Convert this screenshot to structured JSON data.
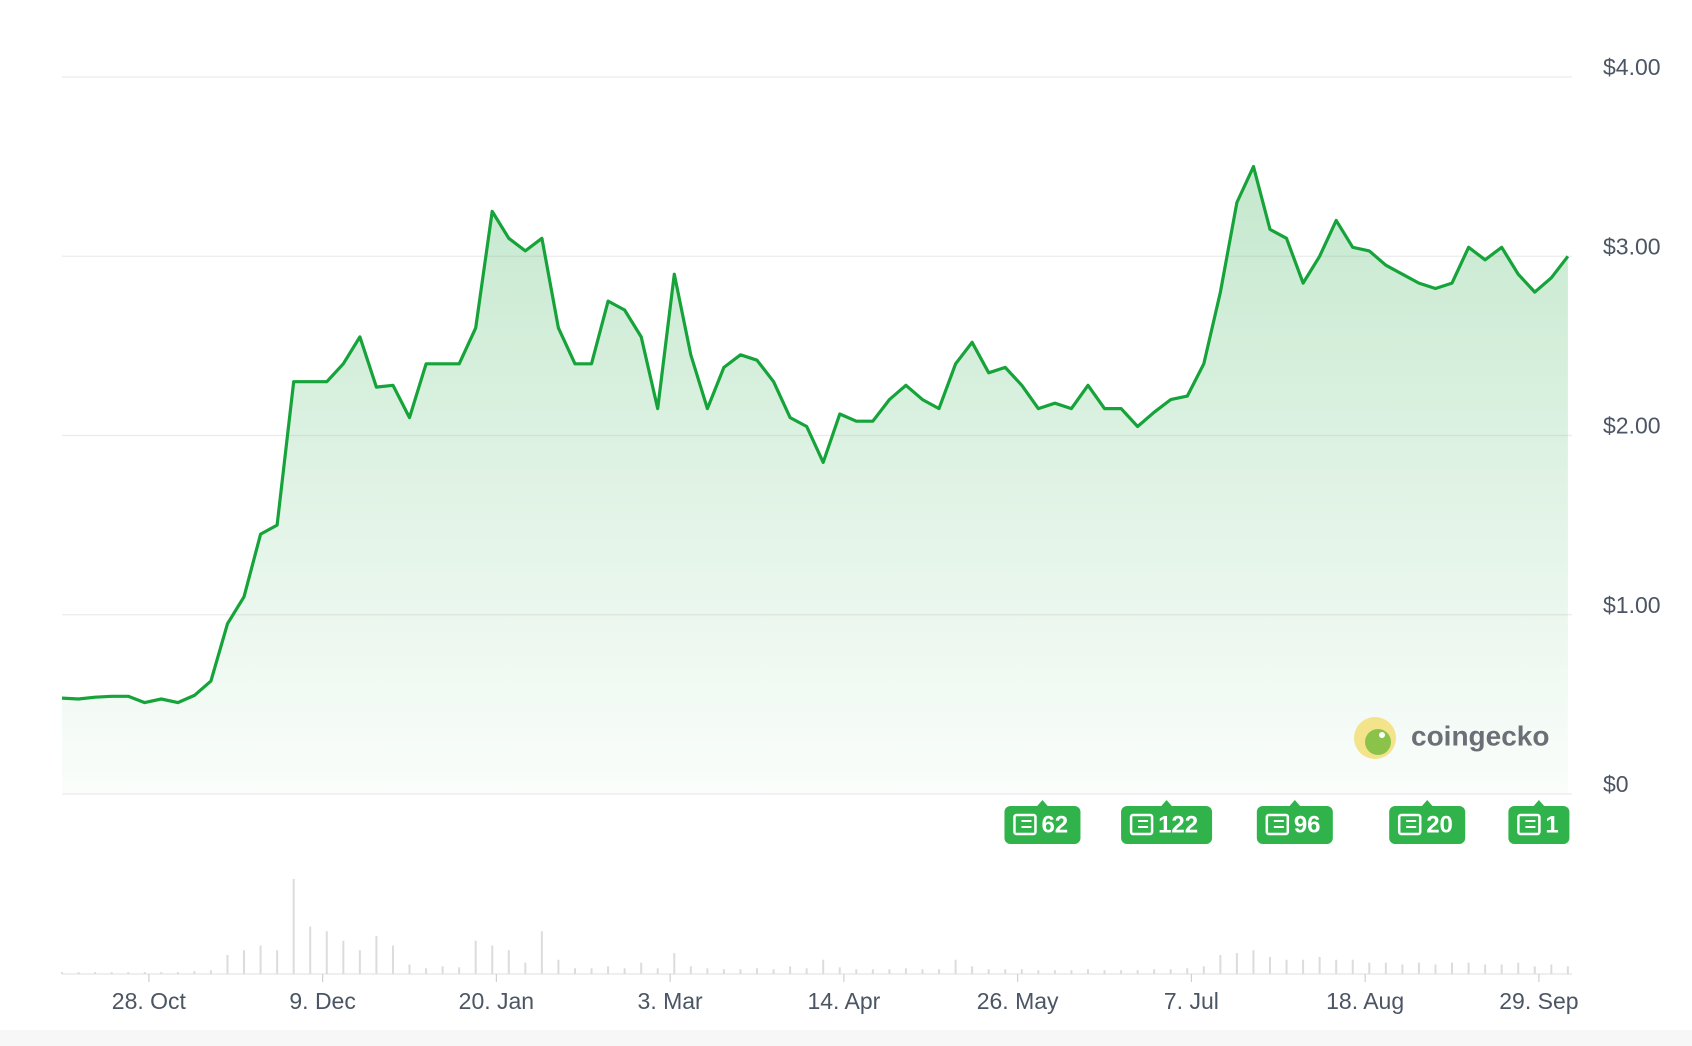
{
  "chart_data": {
    "type": "area",
    "values": [
      0.535,
      0.53,
      0.54,
      0.545,
      0.545,
      0.51,
      0.53,
      0.51,
      0.55,
      0.63,
      0.95,
      1.1,
      1.45,
      1.5,
      2.3,
      2.3,
      2.3,
      2.4,
      2.55,
      2.27,
      2.28,
      2.1,
      2.4,
      2.4,
      2.4,
      2.6,
      3.25,
      3.1,
      3.03,
      3.1,
      2.6,
      2.4,
      2.4,
      2.75,
      2.7,
      2.55,
      2.15,
      2.9,
      2.45,
      2.15,
      2.38,
      2.45,
      2.42,
      2.3,
      2.1,
      2.05,
      1.85,
      2.12,
      2.08,
      2.08,
      2.2,
      2.28,
      2.2,
      2.15,
      2.4,
      2.52,
      2.35,
      2.38,
      2.28,
      2.15,
      2.18,
      2.15,
      2.28,
      2.15,
      2.15,
      2.05,
      2.13,
      2.2,
      2.22,
      2.4,
      2.8,
      3.3,
      3.5,
      3.15,
      3.1,
      2.85,
      3.0,
      3.2,
      3.05,
      3.03,
      2.95,
      2.9,
      2.85,
      2.82,
      2.85,
      3.05,
      2.98,
      3.05,
      2.9,
      2.8,
      2.88,
      3.0
    ],
    "color": "#16a33a",
    "volume": [
      2,
      2,
      2,
      2,
      2,
      2,
      2,
      2,
      3,
      4,
      20,
      25,
      30,
      25,
      100,
      50,
      45,
      35,
      25,
      40,
      30,
      10,
      6,
      8,
      7,
      35,
      30,
      25,
      12,
      45,
      15,
      6,
      6,
      8,
      6,
      12,
      6,
      22,
      8,
      6,
      5,
      5,
      6,
      5,
      8,
      6,
      15,
      7,
      5,
      5,
      5,
      6,
      5,
      5,
      15,
      8,
      5,
      5,
      5,
      4,
      4,
      4,
      5,
      4,
      4,
      4,
      5,
      5,
      6,
      8,
      20,
      22,
      25,
      18,
      15,
      15,
      18,
      15,
      15,
      12,
      12,
      10,
      12,
      10,
      12,
      12,
      10,
      10,
      12,
      8,
      10,
      8
    ],
    "volume_ylim": [
      0,
      100
    ],
    "xlim": [
      0,
      91.25
    ],
    "xticks": [
      {
        "value": 5.25,
        "label": "28. Oct"
      },
      {
        "value": 15.75,
        "label": "9. Dec"
      },
      {
        "value": 26.25,
        "label": "20. Jan"
      },
      {
        "value": 36.75,
        "label": "3. Mar"
      },
      {
        "value": 47.25,
        "label": "14. Apr"
      },
      {
        "value": 57.75,
        "label": "26. May"
      },
      {
        "value": 68.25,
        "label": "7. Jul"
      },
      {
        "value": 78.75,
        "label": "18. Aug"
      },
      {
        "value": 89.25,
        "label": "29. Sep"
      }
    ],
    "ylim": [
      0,
      4
    ],
    "yticks": [
      {
        "value": 0,
        "label": "$0"
      },
      {
        "value": 1,
        "label": "$1.00"
      },
      {
        "value": 2,
        "label": "$2.00"
      },
      {
        "value": 3,
        "label": "$3.00"
      },
      {
        "value": 4,
        "label": "$4.00"
      }
    ],
    "grid": true,
    "news": [
      {
        "x": 59.25,
        "count": 62
      },
      {
        "x": 66.75,
        "count": 122
      },
      {
        "x": 74.5,
        "count": 96
      },
      {
        "x": 82.5,
        "count": 20
      },
      {
        "x": 89.25,
        "count": 1
      }
    ],
    "watermark": "coingecko"
  }
}
